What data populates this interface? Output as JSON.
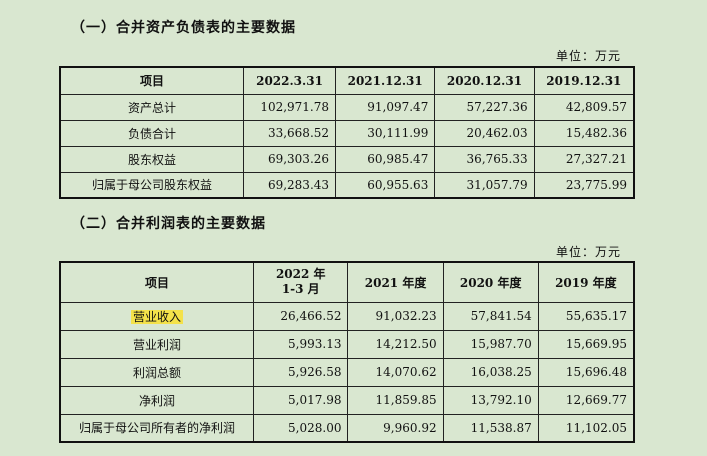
{
  "section1": {
    "title": "（一）合并资产负债表的主要数据",
    "unit": "单位：万元",
    "headers": [
      "项目",
      "2022.3.31",
      "2021.12.31",
      "2020.12.31",
      "2019.12.31"
    ],
    "rows": [
      [
        "资产总计",
        "102,971.78",
        "91,097.47",
        "57,227.36",
        "42,809.57"
      ],
      [
        "负债合计",
        "33,668.52",
        "30,111.99",
        "20,462.03",
        "15,482.36"
      ],
      [
        "股东权益",
        "69,303.26",
        "60,985.47",
        "36,765.33",
        "27,327.21"
      ],
      [
        "归属于母公司股东权益",
        "69,283.43",
        "60,955.63",
        "31,057.79",
        "23,775.99"
      ]
    ]
  },
  "section2": {
    "title": "（二）合并利润表的主要数据",
    "unit": "单位：万元",
    "headers": [
      "项目",
      "2022 年\n1-3 月",
      "2021 年度",
      "2020 年度",
      "2019 年度"
    ],
    "rows": [
      [
        "营业收入",
        "26,466.52",
        "91,032.23",
        "57,841.54",
        "55,635.17"
      ],
      [
        "营业利润",
        "5,993.13",
        "14,212.50",
        "15,987.70",
        "15,669.95"
      ],
      [
        "利润总额",
        "5,926.58",
        "14,070.62",
        "16,038.25",
        "15,696.48"
      ],
      [
        "净利润",
        "5,017.98",
        "11,859.85",
        "13,792.10",
        "12,669.77"
      ],
      [
        "归属于母公司所有者的净利润",
        "5,028.00",
        "9,960.92",
        "11,538.87",
        "11,102.05"
      ]
    ]
  },
  "highlight_color": "#f4e24a",
  "background_color": "#d9e7d0"
}
